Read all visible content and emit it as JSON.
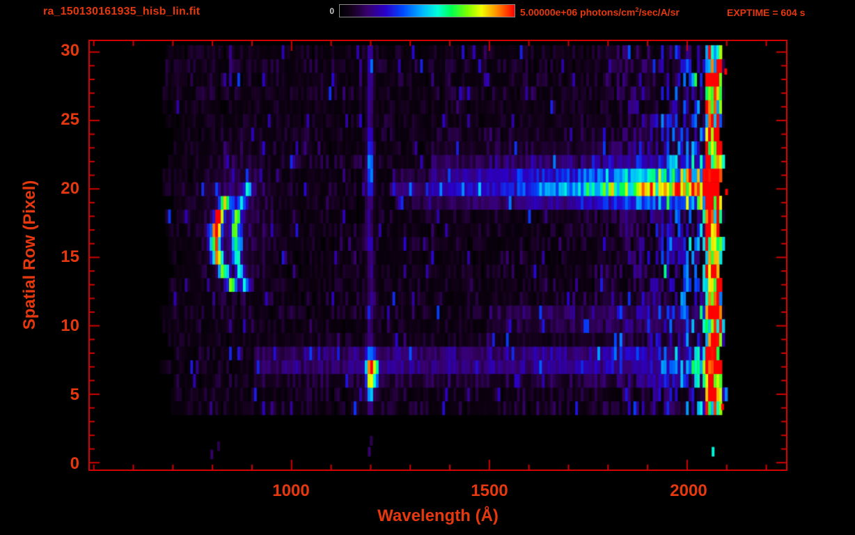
{
  "colors": {
    "background": "#000000",
    "frame": "#d40000",
    "axis_text": "#e5380e",
    "colorbar_zero_label": "#c8c8c8",
    "colorbar_border": "#8a8a8a"
  },
  "chart_data": {
    "type": "heatmap",
    "title": "ra_150130161935_hisb_lin.fit",
    "exptime_label": "EXPTIME = 604 s",
    "xlabel": "Wavelength (Å)",
    "ylabel": "Spatial Row (Pixel)",
    "x_ticks": [
      1000,
      1500,
      2000
    ],
    "x_minor_step": 100,
    "y_ticks": [
      0,
      5,
      10,
      15,
      20,
      25,
      30
    ],
    "y_minor_step": 1,
    "x_range": [
      490,
      2250
    ],
    "y_range": [
      -0.5,
      30.8
    ],
    "colorbar": {
      "min_label": "0",
      "max_value_photons_per_cm2_sec_A_sr": 5000000,
      "max_label_prefix": "5.00000e+06 photons/cm",
      "max_label_sup": "2",
      "max_label_suffix": "/sec/A/sr"
    },
    "colormap": "rainbow",
    "colormap_stops": [
      {
        "t": 0.0,
        "color": "#000000"
      },
      {
        "t": 0.07,
        "color": "#16001e"
      },
      {
        "t": 0.16,
        "color": "#38006e"
      },
      {
        "t": 0.26,
        "color": "#2a00c8"
      },
      {
        "t": 0.36,
        "color": "#0048ff"
      },
      {
        "t": 0.47,
        "color": "#00b4ff"
      },
      {
        "t": 0.56,
        "color": "#00ffd8"
      },
      {
        "t": 0.64,
        "color": "#00ff50"
      },
      {
        "t": 0.73,
        "color": "#7dff00"
      },
      {
        "t": 0.81,
        "color": "#f0ff00"
      },
      {
        "t": 0.9,
        "color": "#ff8c00"
      },
      {
        "t": 1.0,
        "color": "#ff0000"
      }
    ],
    "intensity_scale": "fraction of colorbar max (5.0e6 photons/cm2/sec/A/sr)",
    "data_extent": {
      "wavelength": [
        665,
        2090
      ],
      "rows": [
        4,
        30
      ]
    },
    "features": [
      {
        "id": "airglow-arc-primary",
        "kind": "curved-line",
        "row_range": [
          13.2,
          19.8
        ],
        "row_center": 16.4,
        "wavelength_vertex": 803,
        "curvature": 40,
        "sigma": 9,
        "peak": 0.85
      },
      {
        "id": "airglow-arc-secondary",
        "kind": "curved-line",
        "row_range": [
          12.8,
          20.2
        ],
        "row_center": 16.4,
        "wavelength_vertex": 855,
        "curvature": 30,
        "sigma": 8,
        "peak": 0.5
      },
      {
        "id": "arc-halo",
        "kind": "blob",
        "wavelength": 850,
        "sigma_wavelength": 55,
        "row": 18,
        "sigma_row": 4.0,
        "peak": 0.1
      },
      {
        "id": "emission-line",
        "kind": "vertical-line",
        "wavelength": 1195,
        "sigma": 6,
        "row_range": [
          4,
          30
        ],
        "peak": 0.15,
        "extra_rows": [
          {
            "row": 21.5,
            "sigma": 2.2,
            "peak": 0.22
          }
        ]
      },
      {
        "id": "emission-line-blob",
        "kind": "blob",
        "wavelength": 1200,
        "sigma_wavelength": 10,
        "row": 6.6,
        "sigma_row": 1.15,
        "peak": 0.8
      },
      {
        "id": "continuum-band",
        "kind": "horizontal-band",
        "row": 20.1,
        "sigma_row": 1.2,
        "wavelength_range": [
          1260,
          2085
        ],
        "ramp": [
          [
            1260,
            0.1
          ],
          [
            1550,
            0.22
          ],
          [
            1800,
            0.45
          ],
          [
            1950,
            0.62
          ],
          [
            2085,
            0.62
          ]
        ]
      },
      {
        "id": "lower-band",
        "kind": "horizontal-band",
        "row": 7.4,
        "sigma_row": 1.1,
        "wavelength_range": [
          900,
          2085
        ],
        "ramp": [
          [
            900,
            0.1
          ],
          [
            1300,
            0.14
          ],
          [
            2085,
            0.2
          ]
        ]
      },
      {
        "id": "mid-faint-band",
        "kind": "horizontal-band",
        "row": 10.6,
        "sigma_row": 1.0,
        "wavelength_range": [
          1500,
          2085
        ],
        "ramp": [
          [
            1500,
            0.06
          ],
          [
            2085,
            0.12
          ]
        ]
      },
      {
        "id": "upper-halo",
        "kind": "horizontal-band",
        "row": 21.5,
        "sigma_row": 2.2,
        "wavelength_range": [
          1350,
          2085
        ],
        "ramp": [
          [
            1350,
            0.05
          ],
          [
            2085,
            0.1
          ]
        ]
      }
    ],
    "bottom_specks": [
      {
        "wavelength": 795,
        "row": 0.6,
        "value": 0.15
      },
      {
        "wavelength": 812,
        "row": 1.2,
        "value": 0.12
      },
      {
        "wavelength": 1193,
        "row": 0.8,
        "value": 0.16
      },
      {
        "wavelength": 1198,
        "row": 1.6,
        "value": 0.13
      },
      {
        "wavelength": 2062,
        "row": 0.8,
        "value": 0.55
      }
    ],
    "hot_pixels": [
      {
        "wavelength": 2096,
        "row": 19.8
      },
      {
        "wavelength": 2094,
        "row": 28.6
      },
      {
        "wavelength": 2086,
        "row": 4.1
      }
    ],
    "render": {
      "seed": 150130,
      "bin_width_angstrom": 7,
      "wavelength_start": 660,
      "wavelength_end": 2100,
      "left_edge_base": 665,
      "left_edge_jitter": 35,
      "right_edge_base": 2078,
      "right_edge_jitter": 18,
      "background": {
        "base": 0.025,
        "mottle": 0.09,
        "speckle_prob": 0.07,
        "speckle_amp": 0.25,
        "dark_gap_prob": 0.06
      },
      "right_enhancement": {
        "start": 1650,
        "full": 2050,
        "amp": 0.55,
        "prob": 0.55
      },
      "edge_column": {
        "range": [
          2042,
          2085
        ],
        "amp_min": 0.3,
        "amp_max": 0.85,
        "hot_prob": 0.05
      }
    }
  }
}
